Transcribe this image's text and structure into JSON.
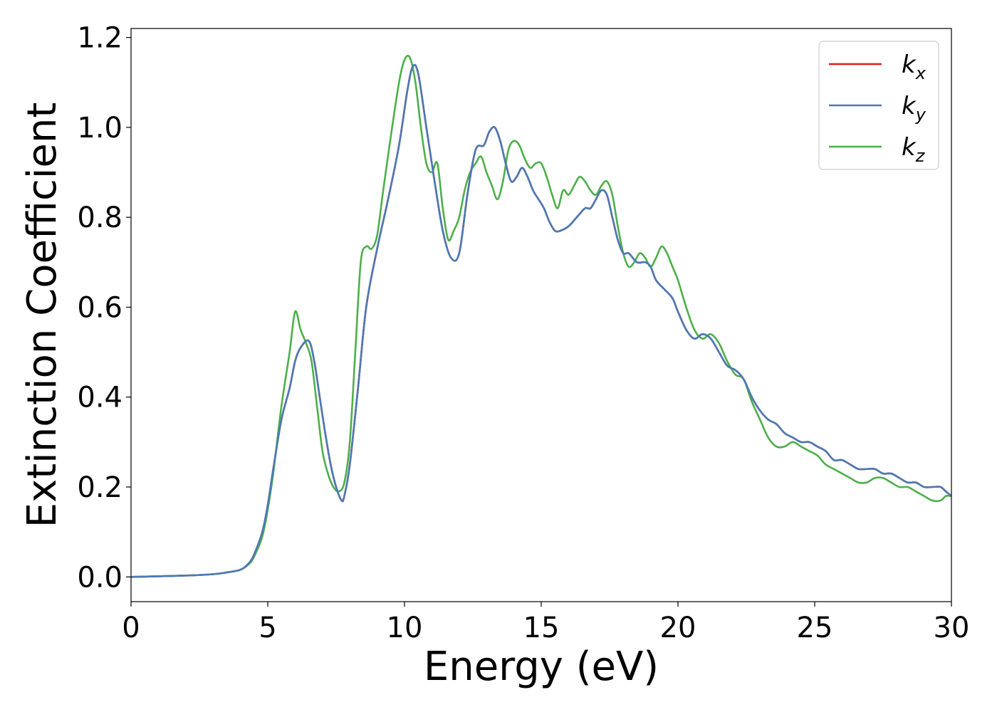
{
  "chart_data": {
    "type": "line",
    "title": "",
    "xlabel": "Energy (eV)",
    "ylabel": "Extinction Coefficient",
    "xlim": [
      0,
      30
    ],
    "ylim": [
      -0.055,
      1.22
    ],
    "grid": false,
    "legend_position": "top-right",
    "xticks": [
      0,
      5,
      10,
      15,
      20,
      25,
      30
    ],
    "xtick_labels": [
      "0",
      "5",
      "10",
      "15",
      "20",
      "25",
      "30"
    ],
    "yticks": [
      0.0,
      0.2,
      0.4,
      0.6,
      0.8,
      1.0,
      1.2
    ],
    "ytick_labels": [
      "0.0",
      "0.2",
      "0.4",
      "0.6",
      "0.8",
      "1.0",
      "1.2"
    ],
    "series": [
      {
        "name": "k_x",
        "label_base": "k",
        "label_sub": "x",
        "color": "#e41a1c",
        "x": [
          0,
          2,
          3,
          3.5,
          4,
          4.3,
          4.5,
          4.8,
          5.0,
          5.2,
          5.5,
          5.8,
          6.0,
          6.2,
          6.5,
          6.7,
          6.9,
          7.1,
          7.3,
          7.5,
          7.7,
          7.8,
          8.0,
          8.3,
          8.6,
          9.0,
          9.4,
          9.8,
          10.1,
          10.3,
          10.5,
          10.8,
          11.1,
          11.4,
          11.7,
          12.0,
          12.3,
          12.6,
          12.9,
          13.1,
          13.3,
          13.5,
          13.7,
          13.9,
          14.1,
          14.3,
          14.5,
          14.7,
          14.9,
          15.1,
          15.3,
          15.5,
          15.7,
          16.0,
          16.3,
          16.6,
          16.8,
          17.0,
          17.2,
          17.4,
          17.6,
          17.8,
          18.0,
          18.2,
          18.5,
          18.8,
          19.0,
          19.2,
          19.5,
          19.8,
          20.0,
          20.3,
          20.6,
          20.9,
          21.2,
          21.5,
          21.8,
          22.1,
          22.4,
          22.7,
          23.0,
          23.3,
          23.6,
          23.9,
          24.2,
          24.5,
          24.8,
          25.1,
          25.4,
          25.7,
          26.0,
          26.3,
          26.6,
          26.9,
          27.2,
          27.5,
          27.8,
          28.1,
          28.4,
          28.7,
          29.0,
          29.3,
          29.6,
          29.8,
          30.0
        ],
        "values": [
          0.0,
          0.003,
          0.006,
          0.01,
          0.016,
          0.03,
          0.05,
          0.1,
          0.16,
          0.24,
          0.35,
          0.42,
          0.48,
          0.51,
          0.525,
          0.48,
          0.4,
          0.32,
          0.25,
          0.2,
          0.17,
          0.18,
          0.25,
          0.42,
          0.6,
          0.73,
          0.84,
          0.96,
          1.08,
          1.135,
          1.12,
          1.0,
          0.88,
          0.77,
          0.71,
          0.72,
          0.85,
          0.95,
          0.96,
          0.99,
          1.0,
          0.97,
          0.92,
          0.88,
          0.89,
          0.91,
          0.89,
          0.86,
          0.84,
          0.82,
          0.79,
          0.77,
          0.77,
          0.78,
          0.8,
          0.82,
          0.82,
          0.84,
          0.86,
          0.85,
          0.8,
          0.75,
          0.72,
          0.72,
          0.7,
          0.7,
          0.69,
          0.66,
          0.64,
          0.62,
          0.59,
          0.55,
          0.53,
          0.54,
          0.53,
          0.5,
          0.47,
          0.46,
          0.44,
          0.4,
          0.37,
          0.35,
          0.34,
          0.32,
          0.31,
          0.3,
          0.3,
          0.29,
          0.28,
          0.26,
          0.26,
          0.25,
          0.24,
          0.24,
          0.24,
          0.23,
          0.23,
          0.22,
          0.21,
          0.21,
          0.2,
          0.2,
          0.2,
          0.19,
          0.18
        ]
      },
      {
        "name": "k_y",
        "label_base": "k",
        "label_sub": "y",
        "color": "#4a7ab5",
        "x": [
          0,
          2,
          3,
          3.5,
          4,
          4.3,
          4.5,
          4.8,
          5.0,
          5.2,
          5.5,
          5.8,
          6.0,
          6.2,
          6.5,
          6.7,
          6.9,
          7.1,
          7.3,
          7.5,
          7.7,
          7.8,
          8.0,
          8.3,
          8.6,
          9.0,
          9.4,
          9.8,
          10.1,
          10.3,
          10.5,
          10.8,
          11.1,
          11.4,
          11.7,
          12.0,
          12.3,
          12.6,
          12.9,
          13.1,
          13.3,
          13.5,
          13.7,
          13.9,
          14.1,
          14.3,
          14.5,
          14.7,
          14.9,
          15.1,
          15.3,
          15.5,
          15.7,
          16.0,
          16.3,
          16.6,
          16.8,
          17.0,
          17.2,
          17.4,
          17.6,
          17.8,
          18.0,
          18.2,
          18.5,
          18.8,
          19.0,
          19.2,
          19.5,
          19.8,
          20.0,
          20.3,
          20.6,
          20.9,
          21.2,
          21.5,
          21.8,
          22.1,
          22.4,
          22.7,
          23.0,
          23.3,
          23.6,
          23.9,
          24.2,
          24.5,
          24.8,
          25.1,
          25.4,
          25.7,
          26.0,
          26.3,
          26.6,
          26.9,
          27.2,
          27.5,
          27.8,
          28.1,
          28.4,
          28.7,
          29.0,
          29.3,
          29.6,
          29.8,
          30.0
        ],
        "values": [
          0.0,
          0.003,
          0.006,
          0.01,
          0.016,
          0.03,
          0.05,
          0.1,
          0.16,
          0.24,
          0.35,
          0.42,
          0.48,
          0.51,
          0.525,
          0.48,
          0.4,
          0.32,
          0.25,
          0.2,
          0.17,
          0.18,
          0.25,
          0.42,
          0.6,
          0.73,
          0.84,
          0.96,
          1.08,
          1.135,
          1.12,
          1.0,
          0.88,
          0.77,
          0.71,
          0.72,
          0.85,
          0.95,
          0.96,
          0.99,
          1.0,
          0.97,
          0.92,
          0.88,
          0.89,
          0.91,
          0.89,
          0.86,
          0.84,
          0.82,
          0.79,
          0.77,
          0.77,
          0.78,
          0.8,
          0.82,
          0.82,
          0.84,
          0.86,
          0.85,
          0.8,
          0.75,
          0.72,
          0.72,
          0.7,
          0.7,
          0.69,
          0.66,
          0.64,
          0.62,
          0.59,
          0.55,
          0.53,
          0.54,
          0.53,
          0.5,
          0.47,
          0.46,
          0.44,
          0.4,
          0.37,
          0.35,
          0.34,
          0.32,
          0.31,
          0.3,
          0.3,
          0.29,
          0.28,
          0.26,
          0.26,
          0.25,
          0.24,
          0.24,
          0.24,
          0.23,
          0.23,
          0.22,
          0.21,
          0.21,
          0.2,
          0.2,
          0.2,
          0.19,
          0.18
        ]
      },
      {
        "name": "k_z",
        "label_base": "k",
        "label_sub": "z",
        "color": "#4daf4a",
        "x": [
          0,
          2,
          3,
          3.5,
          4,
          4.3,
          4.5,
          4.8,
          5.0,
          5.2,
          5.5,
          5.8,
          6.0,
          6.2,
          6.4,
          6.6,
          6.8,
          7.0,
          7.2,
          7.4,
          7.6,
          7.8,
          8.0,
          8.2,
          8.4,
          8.6,
          8.8,
          9.0,
          9.2,
          9.5,
          9.8,
          10.0,
          10.2,
          10.4,
          10.6,
          10.8,
          11.0,
          11.2,
          11.4,
          11.6,
          11.8,
          12.0,
          12.2,
          12.4,
          12.6,
          12.8,
          13.0,
          13.2,
          13.4,
          13.6,
          13.8,
          14.0,
          14.2,
          14.4,
          14.6,
          14.8,
          15.0,
          15.2,
          15.4,
          15.6,
          15.8,
          16.0,
          16.2,
          16.4,
          16.6,
          16.8,
          17.0,
          17.2,
          17.4,
          17.6,
          17.8,
          18.0,
          18.2,
          18.4,
          18.6,
          18.8,
          19.0,
          19.2,
          19.4,
          19.6,
          19.8,
          20.0,
          20.3,
          20.6,
          20.9,
          21.2,
          21.5,
          21.8,
          22.1,
          22.4,
          22.7,
          23.0,
          23.3,
          23.6,
          23.9,
          24.2,
          24.5,
          24.8,
          25.1,
          25.4,
          25.7,
          26.0,
          26.3,
          26.6,
          26.9,
          27.2,
          27.5,
          27.8,
          28.1,
          28.4,
          28.7,
          29.0,
          29.3,
          29.6,
          29.8,
          30.0
        ],
        "values": [
          0.0,
          0.003,
          0.006,
          0.01,
          0.016,
          0.028,
          0.045,
          0.09,
          0.15,
          0.23,
          0.38,
          0.5,
          0.59,
          0.55,
          0.52,
          0.48,
          0.38,
          0.28,
          0.23,
          0.2,
          0.19,
          0.21,
          0.3,
          0.5,
          0.7,
          0.735,
          0.73,
          0.76,
          0.85,
          0.98,
          1.1,
          1.15,
          1.155,
          1.1,
          1.0,
          0.92,
          0.9,
          0.92,
          0.82,
          0.75,
          0.77,
          0.8,
          0.86,
          0.9,
          0.92,
          0.935,
          0.9,
          0.87,
          0.84,
          0.88,
          0.95,
          0.97,
          0.96,
          0.93,
          0.91,
          0.92,
          0.92,
          0.89,
          0.85,
          0.82,
          0.86,
          0.85,
          0.87,
          0.89,
          0.88,
          0.86,
          0.85,
          0.87,
          0.88,
          0.85,
          0.78,
          0.72,
          0.69,
          0.7,
          0.72,
          0.71,
          0.69,
          0.71,
          0.735,
          0.72,
          0.69,
          0.66,
          0.6,
          0.55,
          0.53,
          0.54,
          0.52,
          0.48,
          0.45,
          0.44,
          0.39,
          0.35,
          0.31,
          0.29,
          0.29,
          0.3,
          0.29,
          0.28,
          0.27,
          0.25,
          0.24,
          0.23,
          0.22,
          0.21,
          0.21,
          0.22,
          0.22,
          0.21,
          0.2,
          0.2,
          0.19,
          0.18,
          0.17,
          0.17,
          0.18,
          0.18
        ]
      }
    ]
  }
}
